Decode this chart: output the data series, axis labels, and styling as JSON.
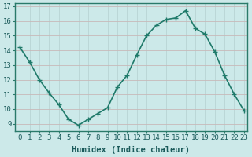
{
  "x": [
    0,
    1,
    2,
    3,
    4,
    5,
    6,
    7,
    8,
    9,
    10,
    11,
    12,
    13,
    14,
    15,
    16,
    17,
    18,
    19,
    20,
    21,
    22,
    23
  ],
  "y": [
    14.2,
    13.2,
    12.0,
    11.1,
    10.3,
    9.3,
    8.9,
    9.3,
    9.7,
    10.1,
    11.5,
    12.3,
    13.7,
    15.0,
    15.7,
    16.1,
    16.2,
    16.7,
    15.5,
    15.1,
    13.9,
    12.3,
    11.0,
    9.9
  ],
  "xlabel": "Humidex (Indice chaleur)",
  "line_color": "#1f7a6a",
  "marker": "+",
  "marker_size": 4,
  "bg_color": "#cce9e9",
  "grid_color_v": "#b8d4d4",
  "grid_color_h": "#c8b8b8",
  "axis_color": "#2a7a6a",
  "tick_color": "#1a5a5a",
  "ylim_min": 9,
  "ylim_max": 17,
  "xlim_min": 0,
  "xlim_max": 23,
  "yticks": [
    9,
    10,
    11,
    12,
    13,
    14,
    15,
    16,
    17
  ],
  "xticks": [
    0,
    1,
    2,
    3,
    4,
    5,
    6,
    7,
    8,
    9,
    10,
    11,
    12,
    13,
    14,
    15,
    16,
    17,
    18,
    19,
    20,
    21,
    22,
    23
  ],
  "tick_fontsize": 6.5,
  "xlabel_fontsize": 7.5,
  "linewidth": 1.2
}
